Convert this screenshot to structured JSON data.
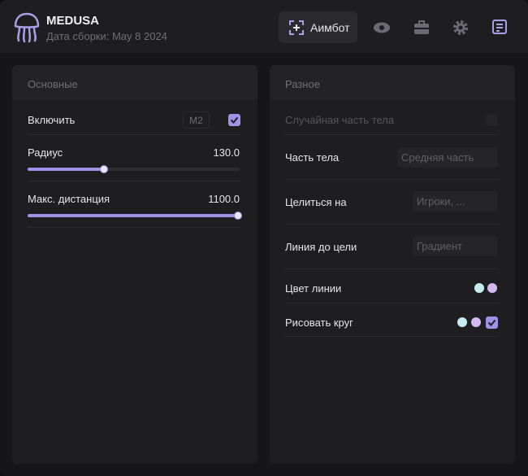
{
  "header": {
    "title": "MEDUSA",
    "subtitle": "Дата сборки: May 8 2024"
  },
  "tabs": [
    {
      "label": "Аимбот"
    }
  ],
  "left_panel": {
    "title": "Основные",
    "rows": [
      {
        "label": "Включить",
        "key": "M2"
      },
      {
        "label": "Радиус",
        "value": "130.0"
      },
      {
        "label": "Макс. дистанция",
        "value": "1100.0"
      }
    ]
  },
  "right_panel": {
    "title": "Разное",
    "rows": [
      {
        "label": "Случайная часть тела"
      },
      {
        "label": "Часть тела",
        "option": "Средняя часть"
      },
      {
        "label": "Целиться на",
        "option": "Игроки, ..."
      },
      {
        "label": "Линия до цели",
        "option": "Градиент"
      },
      {
        "label": "Цвет линии"
      },
      {
        "label": "Рисовать круг"
      }
    ]
  }
}
